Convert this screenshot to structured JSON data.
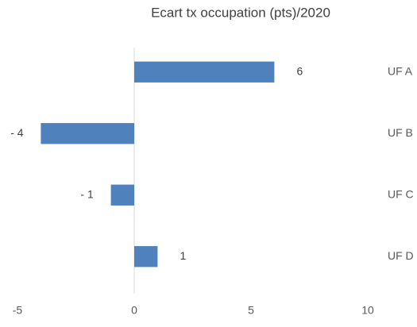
{
  "chart_data": {
    "type": "bar",
    "orientation": "horizontal",
    "title": "Ecart tx occupation (pts)/2020",
    "categories": [
      "UF A",
      "UF B",
      "UF C",
      "UF D"
    ],
    "values": [
      6,
      -4,
      -1,
      1
    ],
    "value_labels": [
      "6",
      "- 4",
      "- 1",
      "1"
    ],
    "color": "#4f81bd",
    "xlim": [
      -5,
      10
    ],
    "xticks": [
      -5,
      0,
      5,
      10
    ],
    "grid": false
  }
}
